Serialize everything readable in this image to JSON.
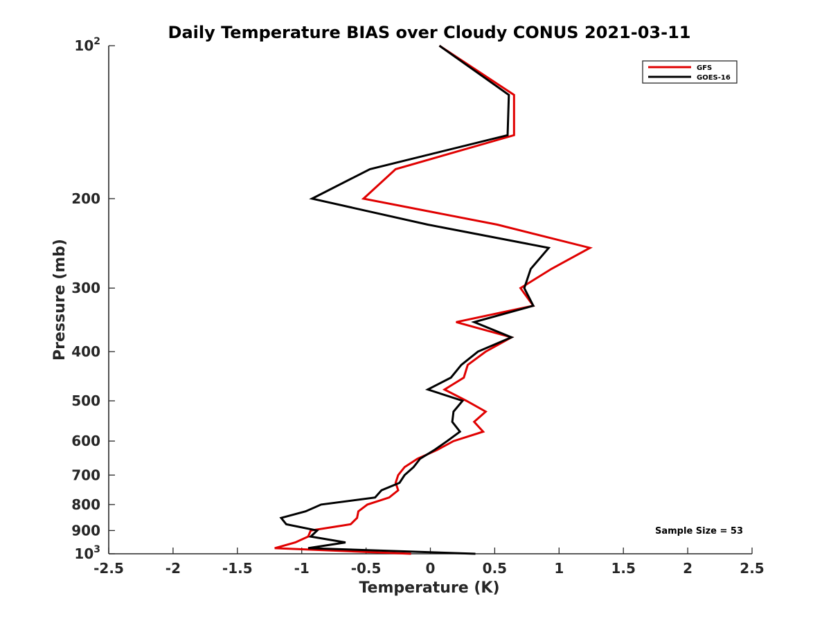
{
  "chart_data": {
    "type": "line",
    "title": "Daily Temperature BIAS over Cloudy CONUS 2021-03-11",
    "xlabel": "Temperature (K)",
    "ylabel": "Pressure (mb)",
    "xlim": [
      -2.5,
      2.5
    ],
    "ylim": [
      100,
      1000
    ],
    "y_scale": "log",
    "y_reversed": true,
    "grid": false,
    "legend_position": "top-right",
    "x_ticks": [
      -2.5,
      -2,
      -1.5,
      -1,
      -0.5,
      0,
      0.5,
      1,
      1.5,
      2,
      2.5
    ],
    "x_tick_labels": [
      "-2.5",
      "-2",
      "-1.5",
      "-1",
      "-0.5",
      "0",
      "0.5",
      "1",
      "1.5",
      "2",
      "2.5"
    ],
    "y_ticks": [
      100,
      200,
      300,
      400,
      500,
      600,
      700,
      800,
      900,
      1000
    ],
    "y_tick_labels": [
      {
        "base": "10",
        "exp": "2"
      },
      {
        "base": "200",
        "exp": ""
      },
      {
        "base": "300",
        "exp": ""
      },
      {
        "base": "400",
        "exp": ""
      },
      {
        "base": "500",
        "exp": ""
      },
      {
        "base": "600",
        "exp": ""
      },
      {
        "base": "700",
        "exp": ""
      },
      {
        "base": "800",
        "exp": ""
      },
      {
        "base": "900",
        "exp": ""
      },
      {
        "base": "10",
        "exp": "3"
      }
    ],
    "annotation": "Sample Size = 53",
    "series": [
      {
        "name": "GFS",
        "color": "#e00000",
        "pressure": [
          100,
          125,
          150,
          175,
          200,
          225,
          250,
          275,
          300,
          325,
          350,
          375,
          400,
          425,
          450,
          475,
          500,
          525,
          550,
          575,
          600,
          625,
          650,
          675,
          700,
          725,
          750,
          775,
          800,
          825,
          850,
          875,
          900,
          925,
          950,
          975,
          1000
        ],
        "temperature": [
          0.07,
          0.65,
          0.65,
          -0.27,
          -0.52,
          0.52,
          1.24,
          0.94,
          0.7,
          0.8,
          0.2,
          0.63,
          0.43,
          0.29,
          0.26,
          0.11,
          0.28,
          0.43,
          0.34,
          0.41,
          0.18,
          0.05,
          -0.1,
          -0.2,
          -0.25,
          -0.27,
          -0.25,
          -0.32,
          -0.49,
          -0.56,
          -0.57,
          -0.62,
          -0.93,
          -0.95,
          -1.05,
          -1.21,
          -0.15
        ]
      },
      {
        "name": "GOES-16",
        "color": "#000000",
        "pressure": [
          100,
          125,
          150,
          175,
          200,
          225,
          250,
          275,
          300,
          325,
          350,
          375,
          400,
          425,
          450,
          475,
          500,
          525,
          550,
          575,
          600,
          625,
          650,
          675,
          700,
          725,
          750,
          775,
          800,
          825,
          850,
          875,
          900,
          925,
          950,
          975,
          1000
        ],
        "temperature": [
          0.07,
          0.61,
          0.6,
          -0.47,
          -0.92,
          -0.02,
          0.92,
          0.78,
          0.73,
          0.8,
          0.34,
          0.63,
          0.37,
          0.24,
          0.16,
          -0.02,
          0.25,
          0.18,
          0.17,
          0.23,
          0.13,
          0.03,
          -0.08,
          -0.13,
          -0.2,
          -0.24,
          -0.38,
          -0.43,
          -0.85,
          -0.97,
          -1.16,
          -1.12,
          -0.88,
          -0.93,
          -0.66,
          -0.95,
          0.35
        ]
      }
    ]
  }
}
